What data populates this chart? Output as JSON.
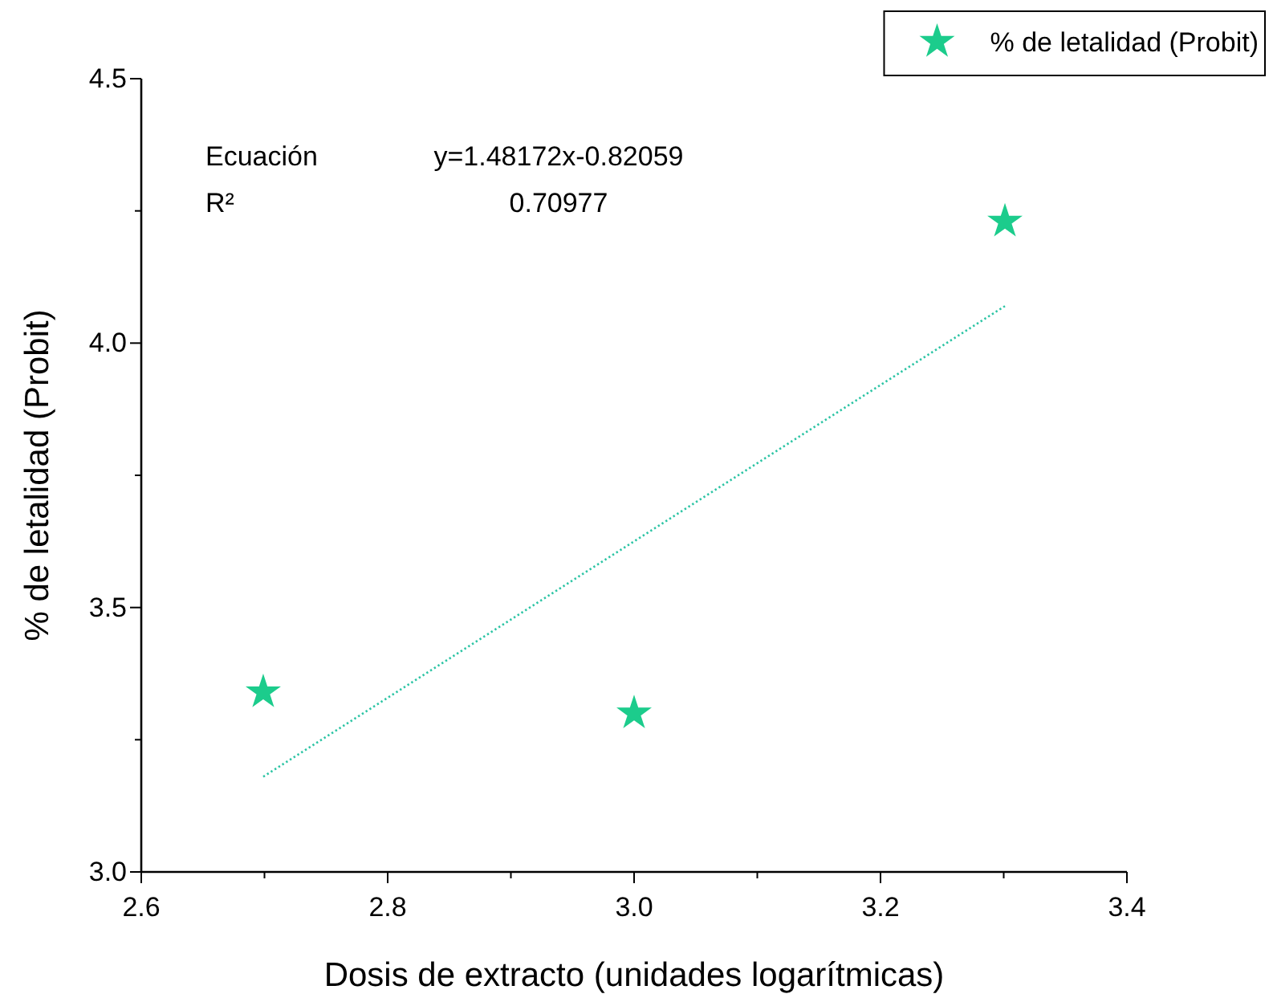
{
  "chart_data": {
    "type": "scatter",
    "xlabel": "Dosis de extracto (unidades logarítmicas)",
    "ylabel": "% de letalidad (Probit)",
    "xlim": [
      2.6,
      3.4
    ],
    "ylim": [
      3.0,
      4.5
    ],
    "xticks": [
      {
        "value": 2.6,
        "label": "2.6"
      },
      {
        "value": 2.7,
        "label": null
      },
      {
        "value": 2.8,
        "label": "2.8"
      },
      {
        "value": 2.9,
        "label": null
      },
      {
        "value": 3.0,
        "label": "3.0"
      },
      {
        "value": 3.1,
        "label": null
      },
      {
        "value": 3.2,
        "label": "3.2"
      },
      {
        "value": 3.3,
        "label": null
      },
      {
        "value": 3.4,
        "label": "3.4"
      }
    ],
    "yticks": [
      {
        "value": 3.0,
        "label": "3.0"
      },
      {
        "value": 3.25,
        "label": null
      },
      {
        "value": 3.5,
        "label": "3.5"
      },
      {
        "value": 3.75,
        "label": null
      },
      {
        "value": 4.0,
        "label": "4.0"
      },
      {
        "value": 4.25,
        "label": null
      },
      {
        "value": 4.5,
        "label": "4.5"
      }
    ],
    "legend": "top right",
    "grid": false,
    "annotations": [
      "Ecuación",
      "y=1.48172x-0.82059",
      "R²",
      "0.70977"
    ],
    "series": [
      {
        "name": "% de letalidad (Probit)",
        "marker": "star",
        "color": "#1ccc8c",
        "x": [
          2.699,
          3.0,
          3.301
        ],
        "values": [
          3.34,
          3.3,
          4.23
        ]
      },
      {
        "type": "line",
        "marker": "none",
        "line_style": "dotted",
        "color": "#2cc4a4",
        "x": [
          2.699,
          3.301
        ],
        "values": [
          3.18,
          4.07
        ]
      }
    ]
  }
}
